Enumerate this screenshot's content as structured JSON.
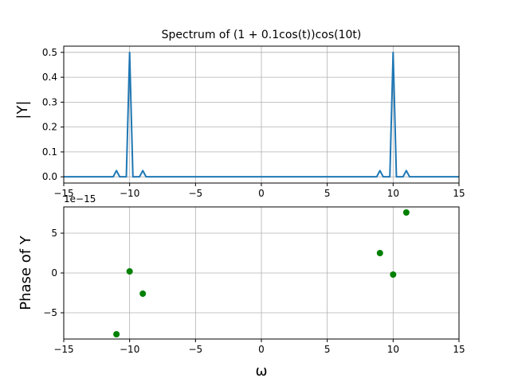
{
  "chart_data": [
    {
      "type": "line",
      "title": "Spectrum of (1 + 0.1cos(t))cos(10t)",
      "xlabel": "",
      "ylabel": "|Y|",
      "xlim": [
        -15,
        15
      ],
      "ylim": [
        -0.025,
        0.525
      ],
      "grid": true,
      "color": "#1f77b4",
      "xticks": [
        -15,
        -10,
        -5,
        0,
        5,
        10,
        15
      ],
      "xtick_labels": [
        "−15",
        "−10",
        "−5",
        "0",
        "5",
        "10",
        "15"
      ],
      "yticks": [
        0.0,
        0.1,
        0.2,
        0.3,
        0.4,
        0.5
      ],
      "ytick_labels": [
        "0.0",
        "0.1",
        "0.2",
        "0.3",
        "0.4",
        "0.5"
      ],
      "x": [
        -15,
        -11.25,
        -11,
        -10.75,
        -10.25,
        -10,
        -9.75,
        -9.25,
        -9,
        -8.75,
        8.75,
        9,
        9.25,
        9.75,
        10,
        10.25,
        10.75,
        11,
        11.25,
        15
      ],
      "y": [
        0,
        0,
        0.025,
        0,
        0,
        0.5,
        0,
        0,
        0.025,
        0,
        0,
        0.025,
        0,
        0,
        0.5,
        0,
        0,
        0.025,
        0,
        0
      ]
    },
    {
      "type": "scatter",
      "xlabel": "ω",
      "ylabel": "Phase of Y",
      "offset_text": "1e−15",
      "xlim": [
        -15,
        15
      ],
      "ylim": [
        -8.3,
        8.3
      ],
      "grid": true,
      "color": "#008000",
      "xticks": [
        -15,
        -10,
        -5,
        0,
        5,
        10,
        15
      ],
      "xtick_labels": [
        "−15",
        "−10",
        "−5",
        "0",
        "5",
        "10",
        "15"
      ],
      "yticks": [
        -5,
        0,
        5
      ],
      "ytick_labels": [
        "−5",
        "0",
        "5"
      ],
      "x": [
        -11,
        -10,
        -9,
        9,
        10,
        11
      ],
      "y": [
        -7.7,
        0.2,
        -2.6,
        2.5,
        -0.2,
        7.6
      ]
    }
  ]
}
